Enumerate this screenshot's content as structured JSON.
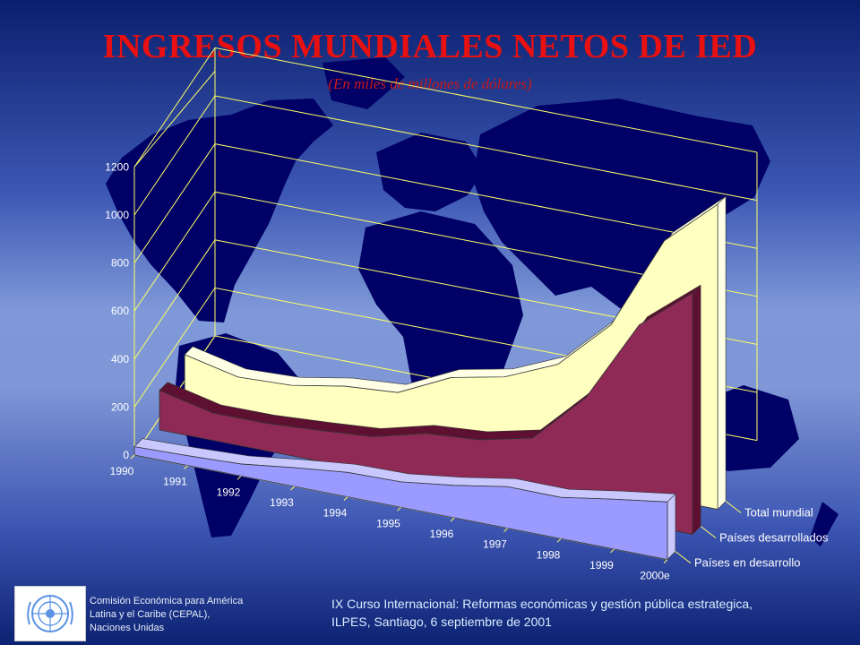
{
  "slide": {
    "title": "INGRESOS MUNDIALES NETOS DE IED",
    "subtitle": "(En miles de millones de dólares)"
  },
  "footer": {
    "org_line1": "Comisión Económica para América",
    "org_line2": "Latina y el Caribe (CEPAL),",
    "org_line3": "Naciones Unidas",
    "course_line1": "IX Curso Internacional: Reformas económicas y gestión pública estrategica,",
    "course_line2": "ILPES, Santiago, 6 septiembre de 2001"
  },
  "colors": {
    "title": "#e81010",
    "total": "#ffffc0",
    "developed": "#8e2a55",
    "developing": "#9a9aff",
    "axis_lines": "#ffff66",
    "map": "#000066"
  },
  "chart_data": {
    "type": "area",
    "title": "INGRESOS MUNDIALES NETOS DE IED",
    "subtitle": "(En miles de millones de dólares)",
    "categories": [
      "1990",
      "1991",
      "1992",
      "1993",
      "1994",
      "1995",
      "1996",
      "1997",
      "1998",
      "1999",
      "2000e"
    ],
    "ylim": [
      0,
      1200
    ],
    "yticks": [
      0,
      200,
      400,
      600,
      800,
      1000,
      1200
    ],
    "grid": true,
    "legend_position": "right, next to each series",
    "series": [
      {
        "name": "Países en desarrollo",
        "values": [
          35,
          41,
          50,
          78,
          102,
          106,
          135,
          173,
          172,
          208,
          240
        ]
      },
      {
        "name": "Países desarrollados",
        "values": [
          165,
          114,
          115,
          129,
          146,
          203,
          220,
          271,
          483,
          829,
          1005
        ]
      },
      {
        "name": "Total mundial",
        "values": [
          209,
          159,
          168,
          208,
          225,
          331,
          377,
          473,
          681,
          1075,
          1270
        ]
      }
    ]
  }
}
